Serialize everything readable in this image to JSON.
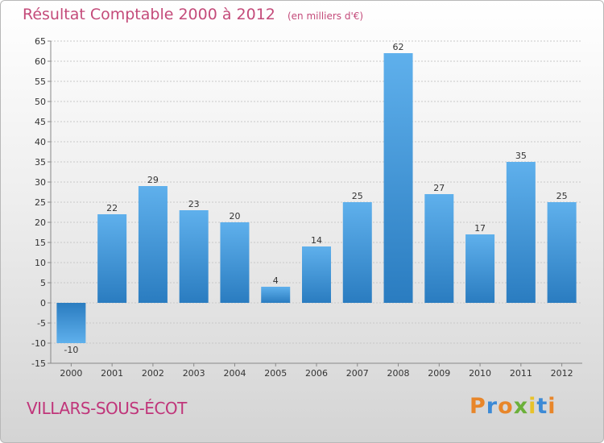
{
  "title": "Résultat Comptable 2000 à 2012",
  "subtitle": "(en milliers d'€)",
  "commune": "VILLARS-SOUS-ÉCOT",
  "brand": {
    "letters": [
      "P",
      "r",
      "o",
      "x",
      "i",
      "t",
      "i"
    ],
    "colors": [
      "#e8862a",
      "#3c8ad6",
      "#e8862a",
      "#6bb03a",
      "#e8c22a",
      "#3c8ad6",
      "#e8862a"
    ]
  },
  "colors": {
    "bar_light": "#5fb0ec",
    "bar_dark": "#2a7cc0",
    "grid": "#c8c8c8",
    "axis": "#888888",
    "title": "#c44b7a",
    "commune": "#c0357a"
  },
  "chart_data": {
    "type": "bar",
    "title": "Résultat Comptable 2000 à 2012",
    "subtitle": "(en milliers d'€)",
    "xlabel": "",
    "ylabel": "",
    "categories": [
      "2000",
      "2001",
      "2002",
      "2003",
      "2004",
      "2005",
      "2006",
      "2007",
      "2008",
      "2009",
      "2010",
      "2011",
      "2012"
    ],
    "values": [
      -10,
      22,
      29,
      23,
      20,
      4,
      14,
      25,
      62,
      27,
      17,
      35,
      25
    ],
    "data_labels": [
      "-10",
      "22",
      "29",
      "23",
      "20",
      "4",
      "14",
      "25",
      "62",
      "27",
      "17",
      "35",
      "25"
    ],
    "ylim": [
      -15,
      65
    ],
    "yticks": [
      -15,
      -10,
      -5,
      0,
      5,
      10,
      15,
      20,
      25,
      30,
      35,
      40,
      45,
      50,
      55,
      60,
      65
    ],
    "ytick_labels": [
      "-15",
      "-10",
      "-5",
      "0",
      "5",
      "10",
      "15",
      "20",
      "25",
      "30",
      "35",
      "40",
      "45",
      "50",
      "55",
      "60",
      "65"
    ],
    "grid": true
  }
}
